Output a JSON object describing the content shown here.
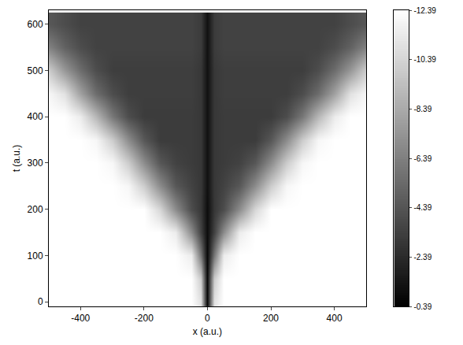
{
  "chart_data": {
    "type": "heatmap",
    "x_label": "x (a.u.)",
    "y_label": "t (a.u.)",
    "x": [
      -500,
      -450,
      -400,
      -350,
      -300,
      -250,
      -200,
      -150,
      -100,
      -50,
      -20,
      0,
      20,
      50,
      100,
      150,
      200,
      250,
      300,
      350,
      400,
      450,
      500
    ],
    "y": [
      0,
      50,
      100,
      150,
      200,
      250,
      300,
      350,
      400,
      450,
      500,
      550,
      600
    ],
    "z": [
      [
        -12.39,
        -12.39,
        -12.39,
        -12.39,
        -12.39,
        -12.39,
        -12.39,
        -12.39,
        -12.39,
        -12.39,
        -11,
        -0.8,
        -11,
        -12.39,
        -12.39,
        -12.39,
        -12.39,
        -12.39,
        -12.39,
        -12.39,
        -12.39,
        -12.39,
        -12.39
      ],
      [
        -12.39,
        -12.39,
        -12.39,
        -12.39,
        -12.39,
        -12.39,
        -12.39,
        -12.39,
        -12.39,
        -12.39,
        -10,
        -0.8,
        -10,
        -12.39,
        -12.39,
        -12.39,
        -12.39,
        -12.39,
        -12.39,
        -12.39,
        -12.39,
        -12.39,
        -12.39
      ],
      [
        -12.39,
        -12.39,
        -12.39,
        -12.39,
        -12.39,
        -12.39,
        -12.39,
        -12.39,
        -12.39,
        -11.5,
        -6,
        -0.8,
        -6,
        -11.5,
        -12.39,
        -12.39,
        -12.39,
        -12.39,
        -12.39,
        -12.39,
        -12.39,
        -12.39,
        -12.39
      ],
      [
        -12.39,
        -12.39,
        -12.39,
        -12.39,
        -12.39,
        -12.39,
        -12.39,
        -12.39,
        -11.5,
        -7,
        -3.5,
        -1,
        -3.5,
        -7,
        -11.5,
        -12.39,
        -12.39,
        -12.39,
        -12.39,
        -12.39,
        -12.39,
        -12.39,
        -12.39
      ],
      [
        -12.39,
        -12.39,
        -12.39,
        -12.39,
        -12.39,
        -12.39,
        -12.39,
        -10.5,
        -7,
        -4,
        -3,
        -1,
        -3,
        -4,
        -7,
        -10.5,
        -12.39,
        -12.39,
        -12.39,
        -12.39,
        -12.39,
        -12.39,
        -12.39
      ],
      [
        -12.39,
        -12.39,
        -12.39,
        -12.39,
        -12.39,
        -12,
        -10,
        -7,
        -4.5,
        -3.5,
        -3,
        -1.2,
        -3,
        -3.5,
        -4.5,
        -7,
        -10,
        -12,
        -12.39,
        -12.39,
        -12.39,
        -12.39,
        -12.39
      ],
      [
        -12.39,
        -12.39,
        -12.39,
        -12.39,
        -12,
        -10,
        -7,
        -4.5,
        -3.5,
        -3.2,
        -3,
        -1.2,
        -3,
        -3.2,
        -3.5,
        -4.5,
        -7,
        -10,
        -12,
        -12.39,
        -12.39,
        -12.39,
        -12.39
      ],
      [
        -12.39,
        -12.39,
        -12.39,
        -12,
        -10,
        -7,
        -4.5,
        -3.2,
        -3.2,
        -3.2,
        -3,
        -1.2,
        -3,
        -3.2,
        -3.2,
        -3.2,
        -4.5,
        -7,
        -10,
        -12,
        -12.39,
        -12.39,
        -12.39
      ],
      [
        -12.39,
        -12.39,
        -11.5,
        -9,
        -6,
        -4,
        -3.2,
        -3.2,
        -3.2,
        -3.2,
        -3,
        -1.2,
        -3,
        -3.2,
        -3.2,
        -3.2,
        -3.2,
        -4,
        -6,
        -9,
        -11.5,
        -12.39,
        -12.39
      ],
      [
        -12,
        -11,
        -8,
        -5.5,
        -4,
        -3.3,
        -3.3,
        -3.3,
        -3.3,
        -3.3,
        -3,
        -1.2,
        -3,
        -3.3,
        -3.3,
        -3.3,
        -3.3,
        -3.3,
        -4,
        -5.5,
        -8,
        -11,
        -12
      ],
      [
        -10,
        -7.5,
        -5.5,
        -4,
        -3.3,
        -3.3,
        -3.3,
        -3.3,
        -3.3,
        -3.3,
        -3,
        -1.2,
        -3,
        -3.3,
        -3.3,
        -3.3,
        -3.3,
        -3.3,
        -3.3,
        -4,
        -5.5,
        -7.5,
        -10
      ],
      [
        -6.5,
        -5,
        -4,
        -3.5,
        -3.5,
        -3.5,
        -3.5,
        -3.5,
        -3.5,
        -3.5,
        -3.2,
        -1.2,
        -3.2,
        -3.5,
        -3.5,
        -3.5,
        -3.5,
        -3.5,
        -3.5,
        -3.5,
        -4,
        -5,
        -6.5
      ],
      [
        -4.5,
        -4,
        -3.5,
        -3.5,
        -3.5,
        -3.5,
        -3.5,
        -3.5,
        -3.5,
        -3.5,
        -3.2,
        -1.2,
        -3.2,
        -3.5,
        -3.5,
        -3.5,
        -3.5,
        -3.5,
        -3.5,
        -3.5,
        -3.5,
        -4,
        -4.5
      ]
    ],
    "xlim": [
      -500,
      500
    ],
    "ylim": [
      -10,
      630
    ],
    "xticks": [
      -400,
      -200,
      0,
      200,
      400
    ],
    "yticks": [
      0,
      100,
      200,
      300,
      400,
      500,
      600
    ],
    "color_range": [
      -12.39,
      -0.39
    ],
    "color_ticks": [
      -12.39,
      -10.39,
      -8.39,
      -6.39,
      -4.39,
      -2.39,
      -0.39
    ]
  }
}
